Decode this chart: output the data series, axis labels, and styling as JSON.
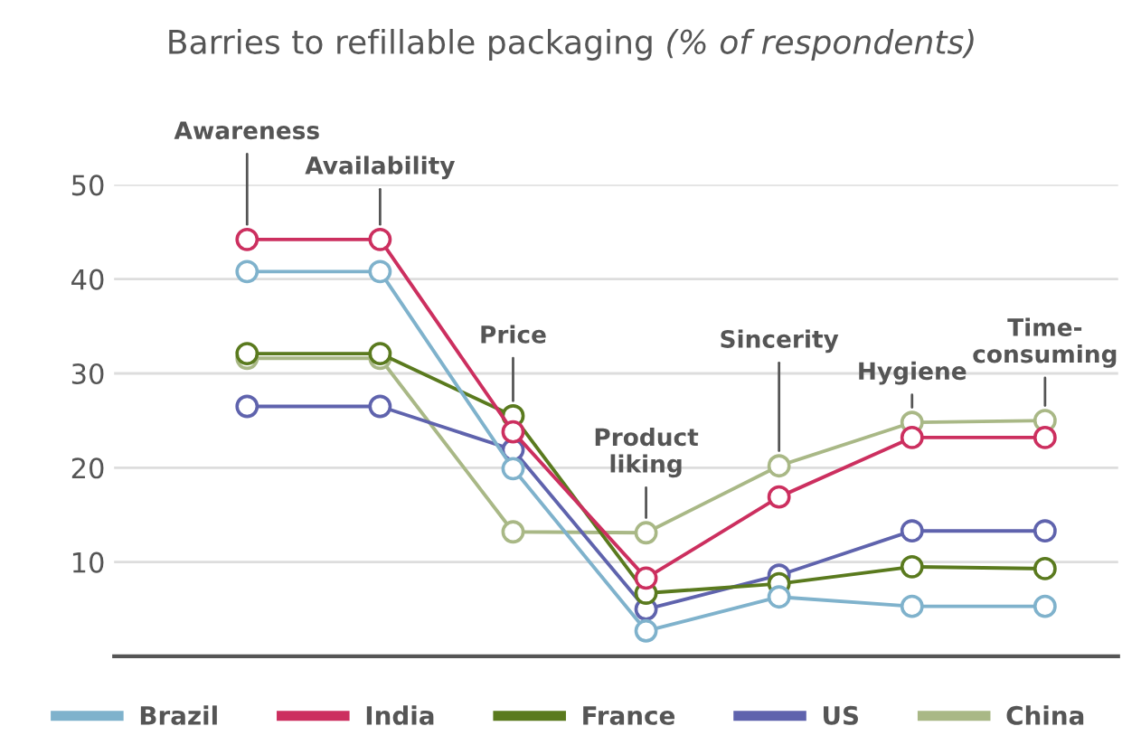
{
  "chart_data": {
    "type": "line",
    "title": "Barries to refillable packaging",
    "subtitle": "(% of respondents)",
    "categories": [
      "Awareness",
      "Availability",
      "Price",
      "Product\nliking",
      "Sincerity",
      "Hygiene",
      "Time-\nconsuming"
    ],
    "series": [
      {
        "name": "Brazil",
        "color": "#7fb2cc",
        "values": [
          40.8,
          40.8,
          19.9,
          2.7,
          6.3,
          5.3,
          5.3
        ]
      },
      {
        "name": "India",
        "color": "#cc2f5f",
        "values": [
          44.2,
          44.2,
          23.8,
          8.3,
          16.9,
          23.2,
          23.2
        ]
      },
      {
        "name": "France",
        "color": "#5a7a1e",
        "values": [
          32.1,
          32.1,
          25.5,
          6.7,
          7.7,
          9.5,
          9.3
        ]
      },
      {
        "name": "US",
        "color": "#5f63ad",
        "values": [
          26.5,
          26.5,
          21.9,
          5.0,
          8.6,
          13.3,
          13.3
        ]
      },
      {
        "name": "China",
        "color": "#a9b886",
        "values": [
          31.6,
          31.6,
          13.2,
          13.1,
          20.2,
          24.8,
          25.0
        ]
      }
    ],
    "ylim": [
      0,
      50
    ],
    "yticks": [
      10,
      20,
      30,
      40,
      50
    ],
    "grid": "y",
    "legend": "bottom",
    "marker": "circle",
    "line_style": "solid",
    "tick_labels": "y"
  }
}
